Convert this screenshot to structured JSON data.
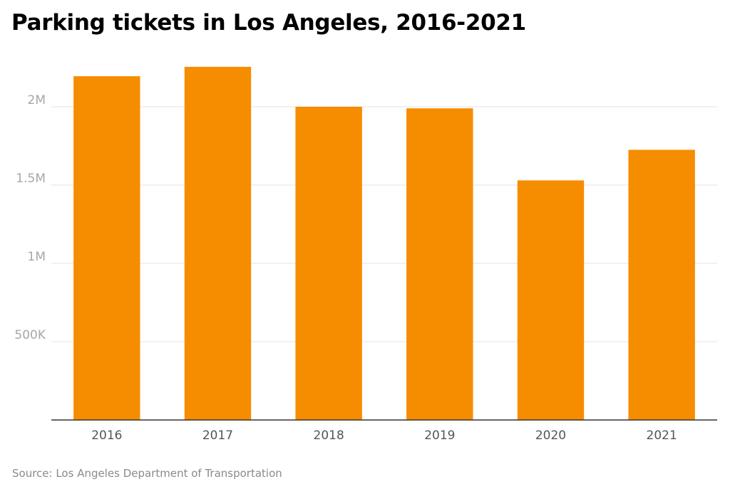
{
  "chart_data": {
    "type": "bar",
    "title": "Parking tickets in Los Angeles, 2016-2021",
    "xlabel": "",
    "ylabel": "",
    "categories": [
      "2016",
      "2017",
      "2018",
      "2019",
      "2020",
      "2021"
    ],
    "values": [
      2195000,
      2255000,
      2000000,
      1990000,
      1530000,
      1725000
    ],
    "ylim": [
      0,
      2300000
    ],
    "yticks": [
      500000,
      1000000,
      1500000,
      2000000
    ],
    "ytick_labels": [
      "500K",
      "1M",
      "1.5M",
      "2M"
    ],
    "grid": true,
    "legend": "none",
    "bar_color": "#f68c00",
    "source": "Source: Los Angeles Department of Transportation"
  }
}
